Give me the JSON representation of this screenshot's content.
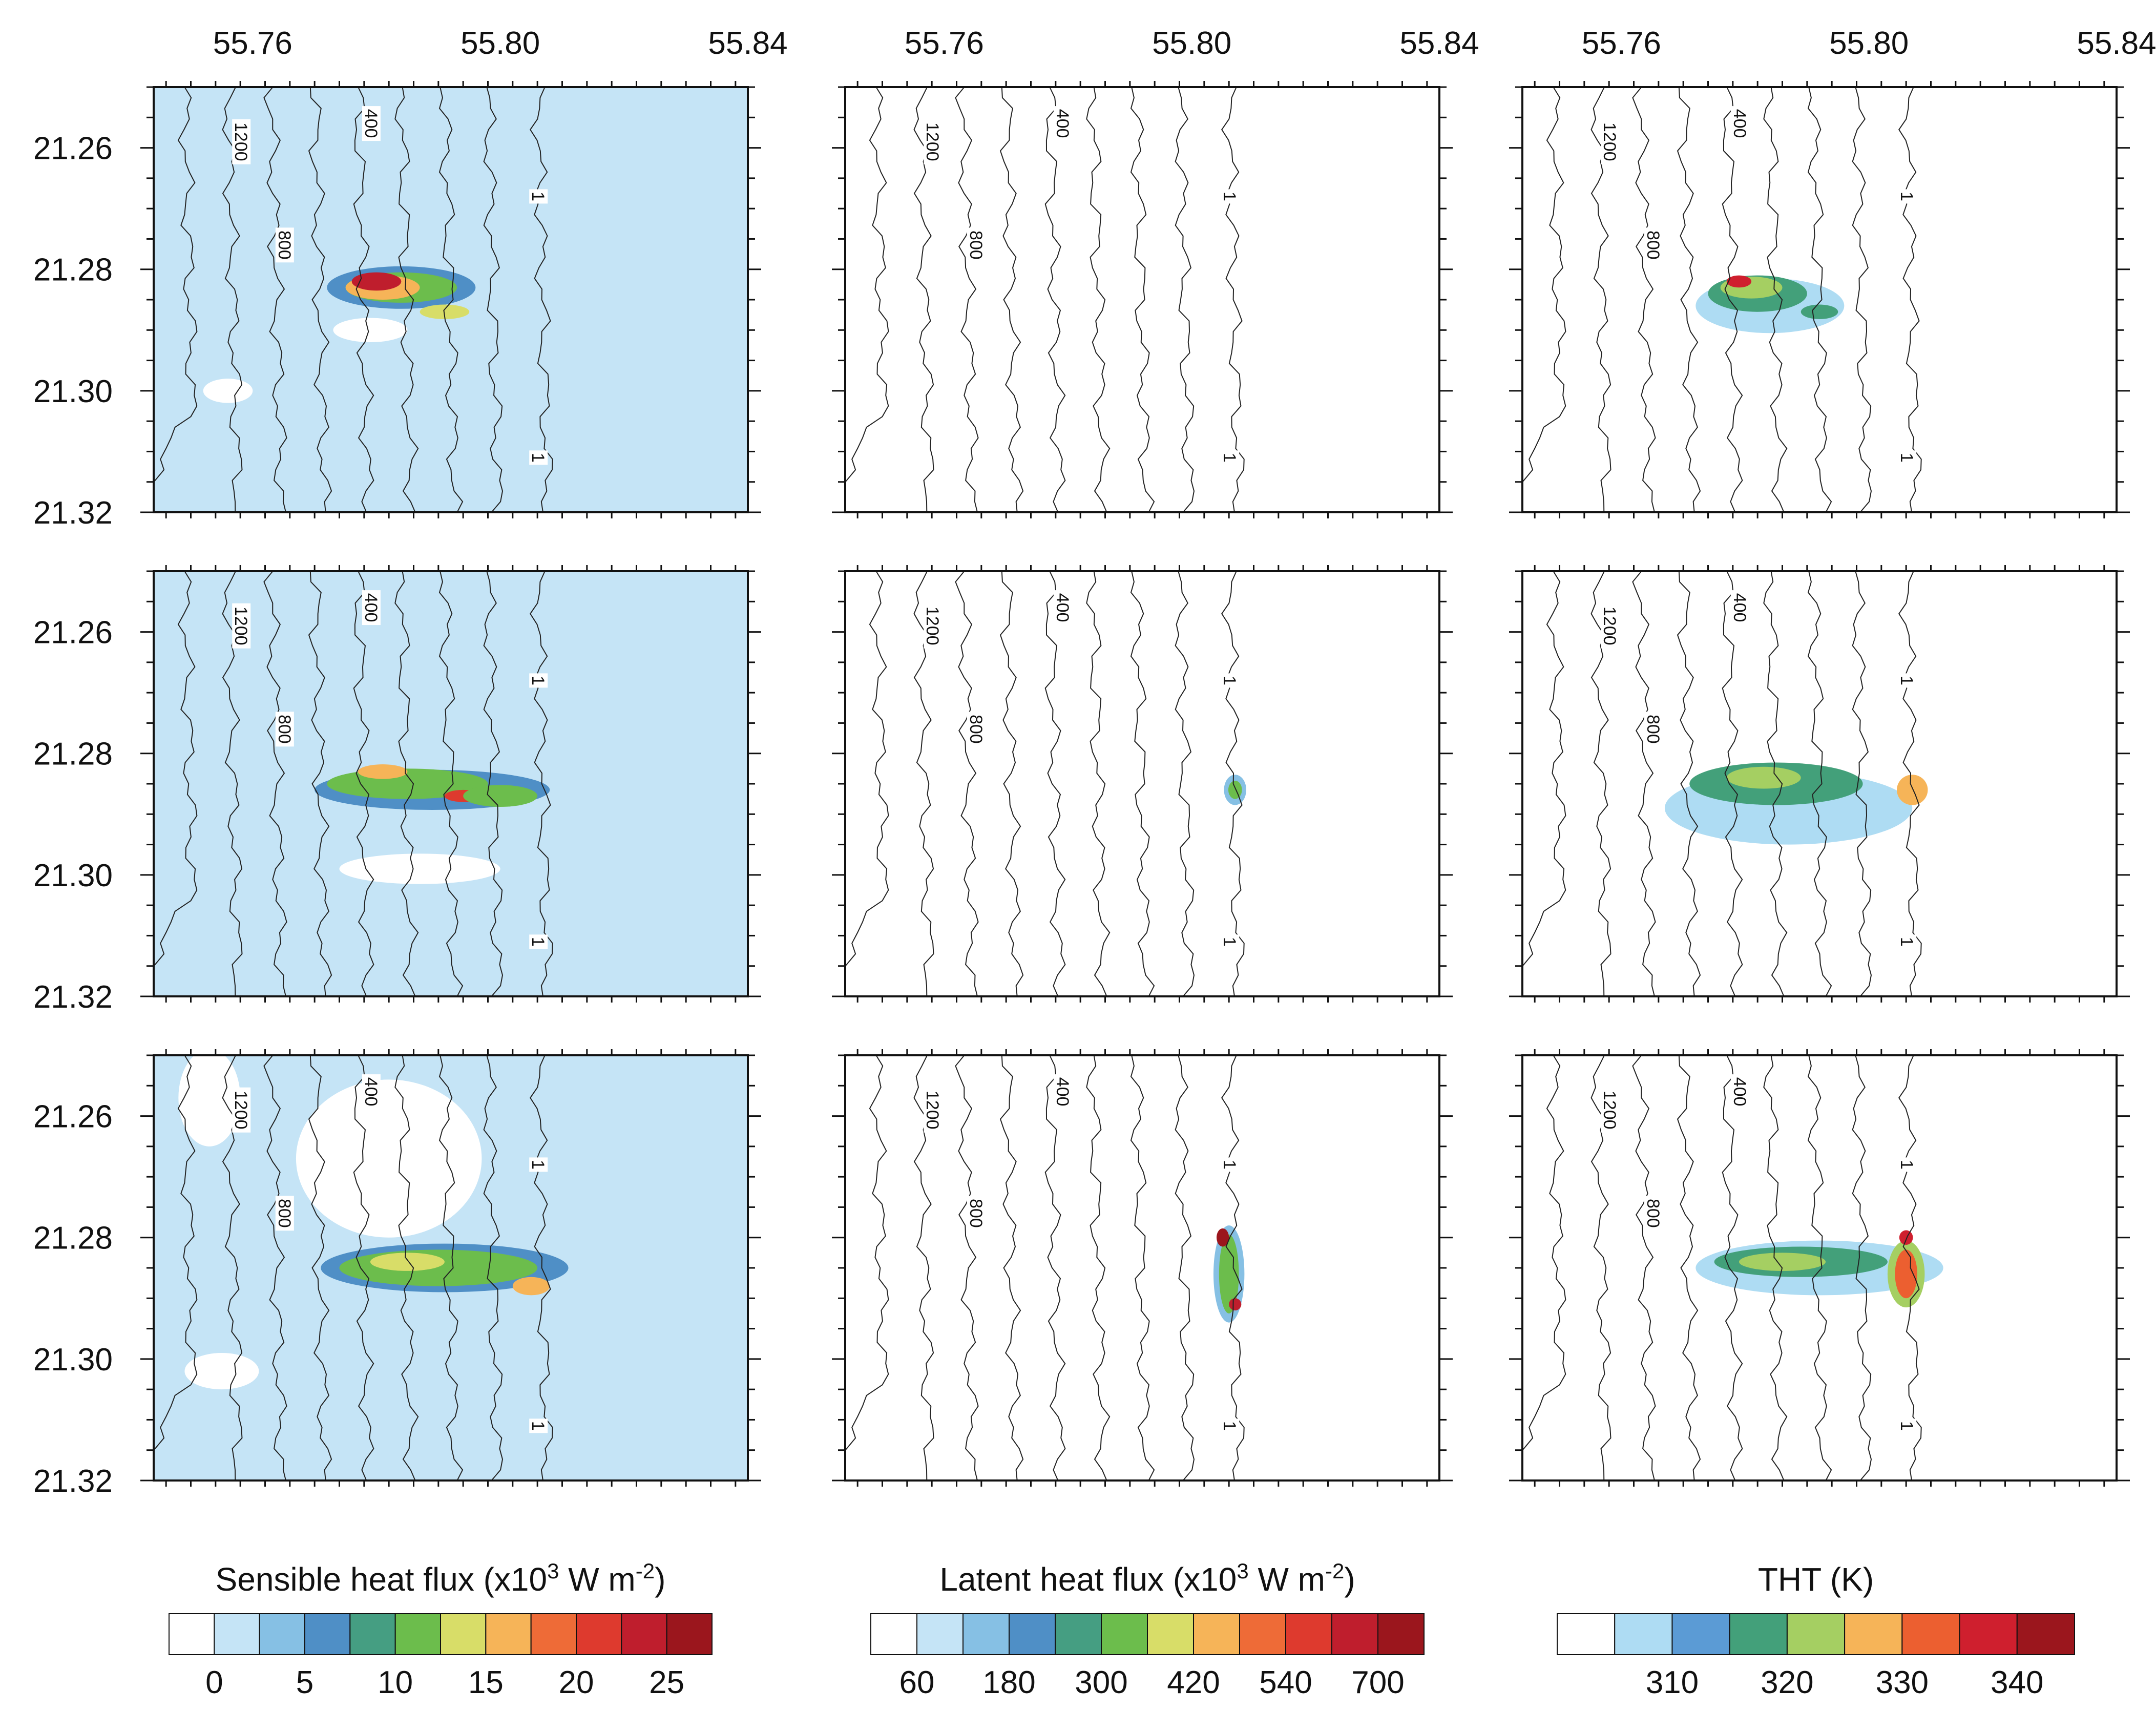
{
  "chart_data": {
    "type": "heatmap",
    "x_tick_labels": [
      "55.76",
      "55.80",
      "55.84"
    ],
    "y_tick_labels": [
      "21.26",
      "21.28",
      "21.30",
      "21.32"
    ],
    "x_range": [
      55.744,
      55.84
    ],
    "y_range": [
      21.25,
      21.32
    ],
    "grid": false,
    "contour_labels": [
      "1200",
      "800",
      "400",
      "1"
    ],
    "contour_lines_x": [
      55.749,
      55.756,
      55.763,
      55.77,
      55.777,
      55.784,
      55.791,
      55.798,
      55.806
    ],
    "columns": [
      {
        "id": "sensible",
        "field": "Sensible heat flux",
        "background": "#c5e4f6",
        "colorbar": {
          "title_parts": [
            "Sensible heat flux (x10",
            "3",
            " W m",
            "-2",
            ")"
          ],
          "labels": [
            "0",
            "5",
            "10",
            "15",
            "20",
            "25"
          ],
          "colors": [
            "#ffffff",
            "#c5e4f6",
            "#86c0e4",
            "#4f8fc6",
            "#459e82",
            "#6cbd4c",
            "#d8dd68",
            "#f6b458",
            "#ee6b37",
            "#de3a2e",
            "#bf1e2d",
            "#9b161d"
          ]
        },
        "panels": [
          {
            "blobs": [
              {
                "x": 55.756,
                "y": 21.3,
                "rx": 0.004,
                "ry": 0.002,
                "color": 0
              },
              {
                "x": 55.779,
                "y": 21.29,
                "rx": 0.006,
                "ry": 0.002,
                "color": 0
              },
              {
                "x": 55.784,
                "y": 21.283,
                "rx": 0.012,
                "ry": 0.0035,
                "color": 3
              },
              {
                "x": 55.784,
                "y": 21.283,
                "rx": 0.009,
                "ry": 0.0025,
                "color": 5
              },
              {
                "x": 55.781,
                "y": 21.283,
                "rx": 0.006,
                "ry": 0.002,
                "color": 7
              },
              {
                "x": 55.78,
                "y": 21.282,
                "rx": 0.004,
                "ry": 0.0015,
                "color": 10
              },
              {
                "x": 55.791,
                "y": 21.287,
                "rx": 0.004,
                "ry": 0.0012,
                "color": 6
              }
            ]
          },
          {
            "blobs": [
              {
                "x": 55.787,
                "y": 21.299,
                "rx": 0.013,
                "ry": 0.0025,
                "color": 0
              },
              {
                "x": 55.789,
                "y": 21.286,
                "rx": 0.019,
                "ry": 0.0033,
                "color": 3
              },
              {
                "x": 55.785,
                "y": 21.285,
                "rx": 0.013,
                "ry": 0.0025,
                "color": 5
              },
              {
                "x": 55.781,
                "y": 21.283,
                "rx": 0.004,
                "ry": 0.0012,
                "color": 7
              },
              {
                "x": 55.794,
                "y": 21.287,
                "rx": 0.003,
                "ry": 0.001,
                "color": 9
              },
              {
                "x": 55.8,
                "y": 21.287,
                "rx": 0.006,
                "ry": 0.0018,
                "color": 5
              }
            ]
          },
          {
            "blobs": [
              {
                "x": 55.753,
                "y": 21.257,
                "rx": 0.005,
                "ry": 0.008,
                "color": 0
              },
              {
                "x": 55.782,
                "y": 21.267,
                "rx": 0.015,
                "ry": 0.013,
                "color": 0
              },
              {
                "x": 55.755,
                "y": 21.302,
                "rx": 0.006,
                "ry": 0.003,
                "color": 0
              },
              {
                "x": 55.791,
                "y": 21.285,
                "rx": 0.02,
                "ry": 0.004,
                "color": 3
              },
              {
                "x": 55.79,
                "y": 21.285,
                "rx": 0.016,
                "ry": 0.003,
                "color": 5
              },
              {
                "x": 55.785,
                "y": 21.284,
                "rx": 0.006,
                "ry": 0.0015,
                "color": 6
              },
              {
                "x": 55.805,
                "y": 21.288,
                "rx": 0.003,
                "ry": 0.0015,
                "color": 7
              }
            ]
          }
        ]
      },
      {
        "id": "latent",
        "field": "Latent heat flux",
        "background": "#ffffff",
        "colorbar": {
          "title_parts": [
            "Latent heat flux (x10",
            "3",
            " W m",
            "-2",
            ")"
          ],
          "labels": [
            "60",
            "180",
            "300",
            "420",
            "540",
            "700"
          ],
          "colors": [
            "#ffffff",
            "#c5e4f6",
            "#86c0e4",
            "#4f8fc6",
            "#459e82",
            "#6cbd4c",
            "#d8dd68",
            "#f6b458",
            "#ee6b37",
            "#de3a2e",
            "#bf1e2d",
            "#9b161d"
          ]
        },
        "panels": [
          {
            "blobs": []
          },
          {
            "blobs": [
              {
                "x": 55.807,
                "y": 21.286,
                "rx": 0.0018,
                "ry": 0.0025,
                "color": 2
              },
              {
                "x": 55.807,
                "y": 21.286,
                "rx": 0.0011,
                "ry": 0.0015,
                "color": 5
              }
            ]
          },
          {
            "blobs": [
              {
                "x": 55.806,
                "y": 21.286,
                "rx": 0.0025,
                "ry": 0.008,
                "color": 2
              },
              {
                "x": 55.806,
                "y": 21.286,
                "rx": 0.0016,
                "ry": 0.0065,
                "color": 5
              },
              {
                "x": 55.805,
                "y": 21.28,
                "rx": 0.001,
                "ry": 0.0015,
                "color": 11
              },
              {
                "x": 55.807,
                "y": 21.291,
                "rx": 0.001,
                "ry": 0.001,
                "color": 10
              }
            ]
          }
        ]
      },
      {
        "id": "tht",
        "field": "THT (K)",
        "background": "#ffffff",
        "colorbar": {
          "title_parts": [
            "THT (K)"
          ],
          "labels": [
            "310",
            "320",
            "330",
            "340"
          ],
          "colors": [
            "#ffffff",
            "#aedcf3",
            "#5b9bd5",
            "#43a07a",
            "#a5cf62",
            "#f6b458",
            "#ec5f30",
            "#cf1f2e",
            "#9b161d"
          ]
        },
        "panels": [
          {
            "blobs": [
              {
                "x": 55.784,
                "y": 21.286,
                "rx": 0.012,
                "ry": 0.0045,
                "color": 1
              },
              {
                "x": 55.782,
                "y": 21.284,
                "rx": 0.008,
                "ry": 0.003,
                "color": 3
              },
              {
                "x": 55.781,
                "y": 21.283,
                "rx": 0.005,
                "ry": 0.0018,
                "color": 4
              },
              {
                "x": 55.779,
                "y": 21.282,
                "rx": 0.002,
                "ry": 0.001,
                "color": 7
              },
              {
                "x": 55.792,
                "y": 21.287,
                "rx": 0.003,
                "ry": 0.0012,
                "color": 3
              }
            ]
          },
          {
            "blobs": [
              {
                "x": 55.787,
                "y": 21.289,
                "rx": 0.02,
                "ry": 0.006,
                "color": 1
              },
              {
                "x": 55.785,
                "y": 21.285,
                "rx": 0.014,
                "ry": 0.0035,
                "color": 3
              },
              {
                "x": 55.783,
                "y": 21.284,
                "rx": 0.006,
                "ry": 0.0018,
                "color": 4
              },
              {
                "x": 55.807,
                "y": 21.286,
                "rx": 0.0025,
                "ry": 0.0025,
                "color": 5
              }
            ]
          },
          {
            "blobs": [
              {
                "x": 55.792,
                "y": 21.285,
                "rx": 0.02,
                "ry": 0.0045,
                "color": 1
              },
              {
                "x": 55.789,
                "y": 21.284,
                "rx": 0.014,
                "ry": 0.0025,
                "color": 3
              },
              {
                "x": 55.786,
                "y": 21.284,
                "rx": 0.007,
                "ry": 0.0015,
                "color": 4
              },
              {
                "x": 55.806,
                "y": 21.286,
                "rx": 0.003,
                "ry": 0.0055,
                "color": 4
              },
              {
                "x": 55.806,
                "y": 21.286,
                "rx": 0.0018,
                "ry": 0.004,
                "color": 6
              },
              {
                "x": 55.806,
                "y": 21.28,
                "rx": 0.0011,
                "ry": 0.0012,
                "color": 7
              }
            ]
          }
        ]
      }
    ]
  }
}
